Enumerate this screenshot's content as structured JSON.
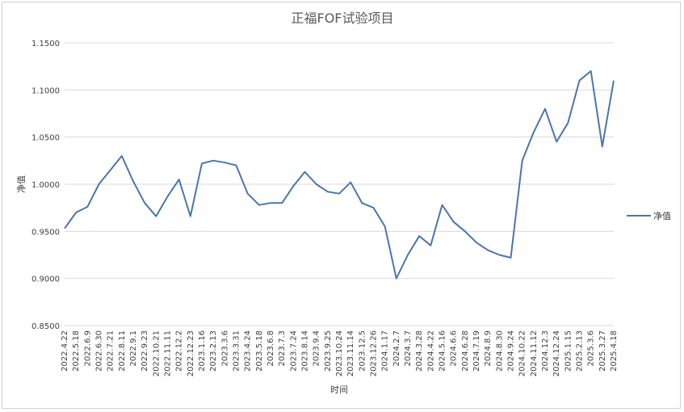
{
  "chart_data": {
    "type": "line",
    "title": "正福FOF试验项目",
    "xlabel": "时间",
    "ylabel": "净值",
    "ylim": [
      0.85,
      1.15
    ],
    "y_ticks": [
      "0.8500",
      "0.9000",
      "0.9500",
      "1.0000",
      "1.0500",
      "1.1000",
      "1.1500"
    ],
    "grid": true,
    "legend_position": "right",
    "colors": {
      "line": "#4a76ac",
      "grid": "#d9d9d9"
    },
    "x_tick_labels": [
      "2022.4.22",
      "2022.5.18",
      "2022.6.9",
      "2022.6.30",
      "2022.7.21",
      "2022.8.11",
      "2022.9.1",
      "2022.9.23",
      "2022.10.21",
      "2022.11.11",
      "2022.12.2",
      "2022.12.23",
      "2023.1.16",
      "2023.2.13",
      "2023.3.6",
      "2023.3.31",
      "2023.4.24",
      "2023.5.18",
      "2023.6.8",
      "2023.7.3",
      "2023.7.24",
      "2023.8.14",
      "2023.9.4",
      "2023.9.25",
      "2023.10.24",
      "2023.11.14",
      "2023.12.5",
      "2023.12.26",
      "2024.1.17",
      "2024.2.7",
      "2024.3.7",
      "2024.3.28",
      "2024.4.22",
      "2024.5.16",
      "2024.6.6",
      "2024.6.28",
      "2024.7.19",
      "2024.8.9",
      "2024.8.30",
      "2024.9.24",
      "2024.10.22",
      "2024.11.12",
      "2024.12.3",
      "2024.12.24",
      "2025.1.15",
      "2025.2.13",
      "2025.3.6",
      "2025.3.27",
      "2025.4.18"
    ],
    "series": [
      {
        "name": "净值",
        "x": [
          "2022.4.22",
          "2022.5.18",
          "2022.6.9",
          "2022.6.30",
          "2022.7.21",
          "2022.8.11",
          "2022.9.1",
          "2022.9.23",
          "2022.10.21",
          "2022.11.11",
          "2022.12.2",
          "2022.12.23",
          "2023.1.16",
          "2023.2.13",
          "2023.3.6",
          "2023.3.31",
          "2023.4.24",
          "2023.5.18",
          "2023.6.8",
          "2023.7.3",
          "2023.7.24",
          "2023.8.14",
          "2023.9.4",
          "2023.9.25",
          "2023.10.24",
          "2023.11.14",
          "2023.12.5",
          "2023.12.26",
          "2024.1.17",
          "2024.2.7",
          "2024.3.7",
          "2024.3.28",
          "2024.4.22",
          "2024.5.16",
          "2024.6.6",
          "2024.6.28",
          "2024.7.19",
          "2024.8.9",
          "2024.8.30",
          "2024.9.24",
          "2024.10.22",
          "2024.11.12",
          "2024.12.3",
          "2024.12.24",
          "2025.1.15",
          "2025.2.13",
          "2025.3.6",
          "2025.3.27",
          "2025.4.18"
        ],
        "values": [
          0.953,
          0.97,
          0.976,
          1.0,
          1.015,
          1.03,
          1.003,
          0.98,
          0.966,
          0.987,
          1.005,
          0.966,
          1.022,
          1.025,
          1.023,
          1.02,
          0.99,
          0.978,
          0.98,
          0.98,
          0.998,
          1.013,
          1.0,
          0.992,
          0.99,
          1.002,
          0.98,
          0.975,
          0.955,
          0.9,
          0.925,
          0.945,
          0.935,
          0.978,
          0.96,
          0.95,
          0.938,
          0.93,
          0.925,
          0.922,
          1.025,
          1.055,
          1.08,
          1.045,
          1.065,
          1.11,
          1.12,
          1.04,
          1.11
        ]
      }
    ]
  }
}
